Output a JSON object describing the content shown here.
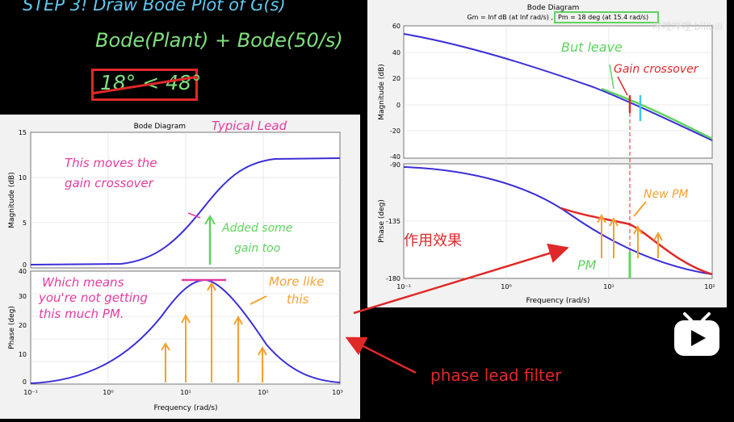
{
  "board": {
    "title": "STEP 3! Draw Bode Plot of G(s)",
    "formula": "Bode(Plant) + Bode(50/s)",
    "strike": "18° < 48°"
  },
  "left_plot": {
    "title": "Bode Diagram",
    "handwritten_title": "Typical Lead",
    "mag_ylabel": "Magnitude (dB)",
    "phase_ylabel": "Phase (deg)",
    "xlabel": "Frequency (rad/s)",
    "mag_ticks": [
      "15",
      "10",
      "5",
      "0"
    ],
    "phase_ticks": [
      "40",
      "30",
      "20",
      "10",
      "0"
    ],
    "x_ticks": [
      "10⁻¹",
      "10⁰",
      "10¹",
      "10²",
      "10³"
    ],
    "annotations": {
      "gain_crossover_1": "This moves the",
      "gain_crossover_2": "gain crossover",
      "added_gain_1": "Added some",
      "added_gain_2": "gain too",
      "which_means_1": "Which means",
      "which_means_2": "you're not getting",
      "which_means_3": "this much PM.",
      "more_like_1": "More like",
      "more_like_2": "this"
    }
  },
  "right_plot": {
    "title": "Bode Diagram",
    "subtitle_gm": "Gm = Inf dB (at Inf rad/s) ,",
    "subtitle_pm": "Pm = 18 deg (at 15.4 rad/s)",
    "mag_ylabel": "Magnitude (dB)",
    "phase_ylabel": "Phase (deg)",
    "xlabel": "Frequency (rad/s)",
    "mag_ticks": [
      "60",
      "40",
      "20",
      "0",
      "-20",
      "-40"
    ],
    "phase_ticks": [
      "-90",
      "-135",
      "-180"
    ],
    "x_ticks": [
      "10⁻¹",
      "10⁰",
      "10¹",
      "10²"
    ],
    "annotations": {
      "but_leave": "But leave",
      "gain_crossover": "Gain crossover",
      "new_pm": "New PM",
      "pm": "PM"
    }
  },
  "overlay": {
    "chinese_note": "作用效果",
    "lead_note": "phase lead filter",
    "watermark": "哔哩哔哩 bilibili"
  },
  "colors": {
    "plot_line": "#3a2fd6",
    "lead_red": "#e02828",
    "green": "#5fd35f",
    "orange": "#f5a030",
    "magenta": "#e23ca0",
    "cyan": "#3cc8e8"
  }
}
